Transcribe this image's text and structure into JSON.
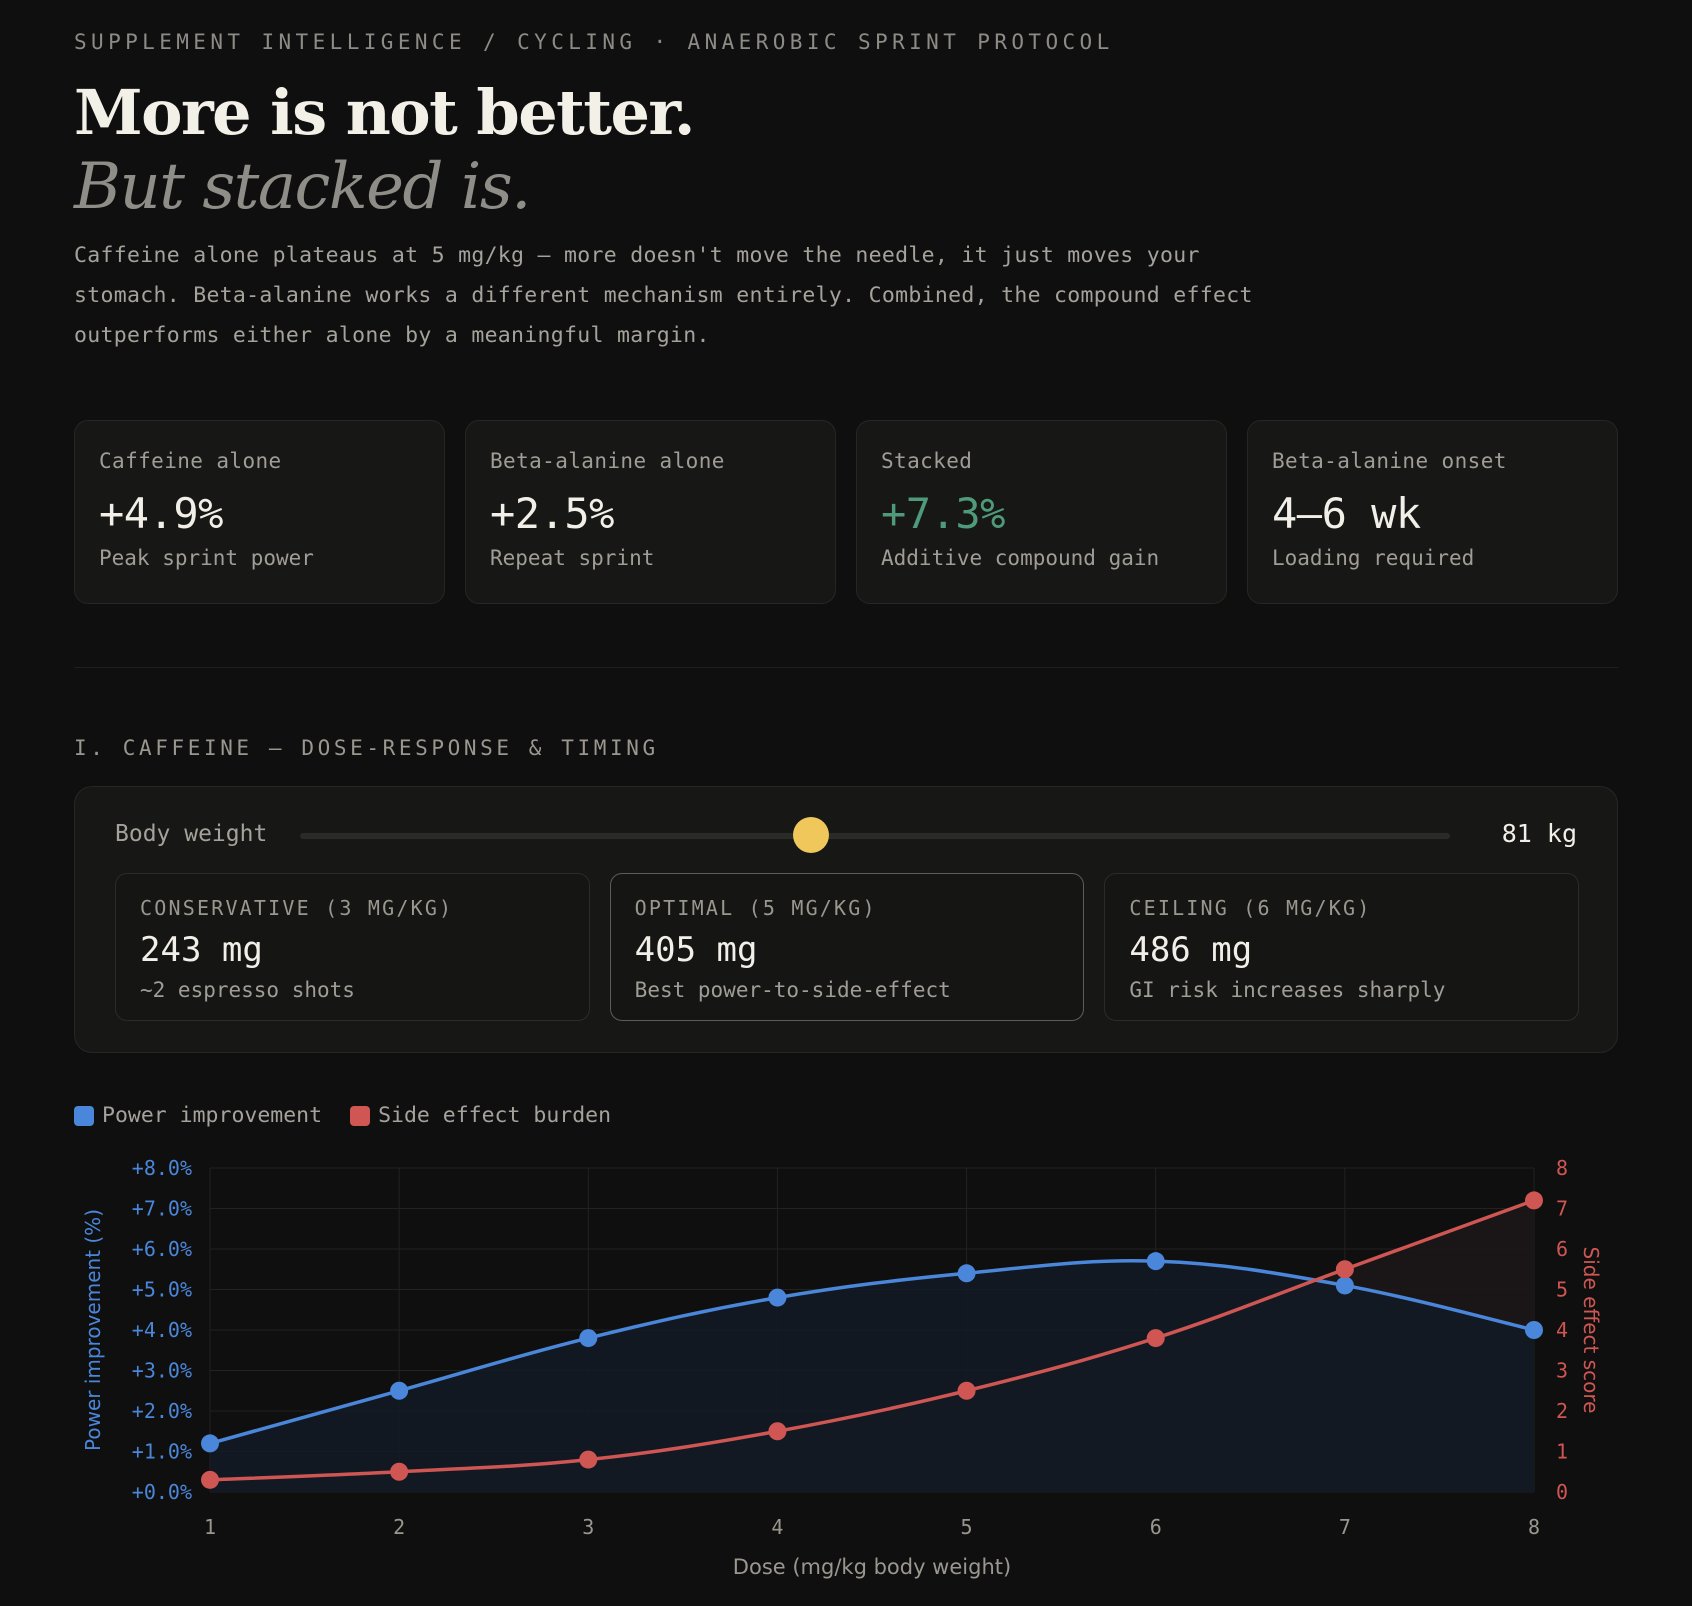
{
  "header": {
    "eyebrow": "Supplement Intelligence / Cycling · Anaerobic Sprint Protocol",
    "title": "More is not better.",
    "subtitle": "But stacked is.",
    "lede": "Caffeine alone plateaus at 5 mg/kg — more doesn't move the needle, it just moves your stomach. Beta-alanine works a different mechanism entirely. Combined, the compound effect outperforms either alone by a meaningful margin."
  },
  "stats": [
    {
      "label": "Caffeine alone",
      "value": "+4.9%",
      "sub": "Peak sprint power"
    },
    {
      "label": "Beta-alanine alone",
      "value": "+2.5%",
      "sub": "Repeat sprint"
    },
    {
      "label": "Stacked",
      "value": "+7.3%",
      "sub": "Additive compound gain"
    },
    {
      "label": "Beta-alanine onset",
      "value": "4–6 wk",
      "sub": "Loading required"
    }
  ],
  "section": {
    "title": "I. Caffeine — Dose-response & timing"
  },
  "calculator": {
    "body_weight_label": "Body weight",
    "body_weight_value": "81 kg",
    "slider_fraction": 0.444,
    "doses": [
      {
        "label": "Conservative (3 mg/kg)",
        "value": "243 mg",
        "sub": "~2 espresso shots"
      },
      {
        "label": "Optimal (5 mg/kg)",
        "value": "405 mg",
        "sub": "Best power-to-side-effect"
      },
      {
        "label": "Ceiling (6 mg/kg)",
        "value": "486 mg",
        "sub": "GI risk increases sharply"
      }
    ]
  },
  "colors": {
    "power": "#4a86d9",
    "side": "#cf5652",
    "accent_green": "#4f9a7a",
    "thumb": "#f0c75a"
  },
  "legend": [
    {
      "label": "Power improvement",
      "color": "#4a86d9"
    },
    {
      "label": "Side effect burden",
      "color": "#cf5652"
    }
  ],
  "chart_data": {
    "type": "line",
    "x": [
      1,
      2,
      3,
      4,
      5,
      6,
      7,
      8
    ],
    "xlabel": "Dose (mg/kg body weight)",
    "ylabel_left": "Power improvement (%)",
    "ylabel_right": "Side effect score",
    "ylim_left": [
      0,
      8
    ],
    "ylim_right": [
      0,
      8
    ],
    "left_ticks": [
      "+0.0%",
      "+1.0%",
      "+2.0%",
      "+3.0%",
      "+4.0%",
      "+5.0%",
      "+6.0%",
      "+7.0%",
      "+8.0%"
    ],
    "right_ticks": [
      "0",
      "1",
      "2",
      "3",
      "4",
      "5",
      "6",
      "7",
      "8"
    ],
    "x_ticks": [
      "1",
      "2",
      "3",
      "4",
      "5",
      "6",
      "7",
      "8"
    ],
    "series": [
      {
        "name": "Power improvement",
        "axis": "left",
        "values": [
          1.2,
          2.5,
          3.8,
          4.8,
          5.4,
          5.7,
          5.1,
          4.0
        ]
      },
      {
        "name": "Side effect burden",
        "axis": "right",
        "values": [
          0.3,
          0.5,
          0.8,
          1.5,
          2.5,
          3.8,
          5.5,
          7.2
        ]
      }
    ],
    "grid": true,
    "legend_position": "top-left"
  }
}
